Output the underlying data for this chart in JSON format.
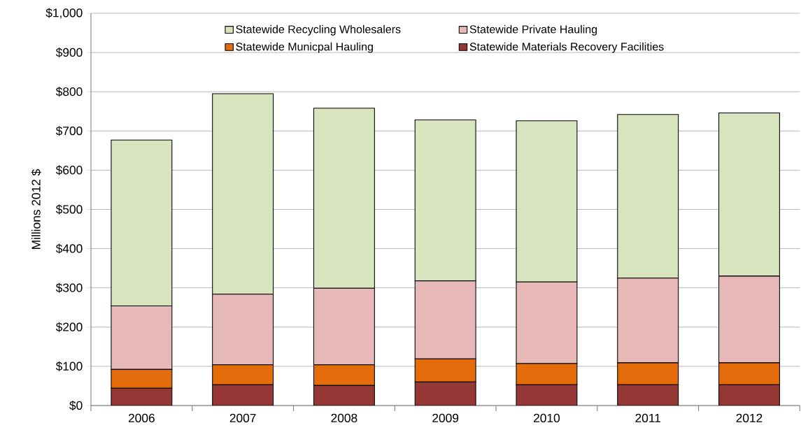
{
  "chart_data": {
    "type": "bar",
    "stacked": true,
    "ylabel": "Millions 2012 $",
    "categories": [
      "2006",
      "2007",
      "2008",
      "2009",
      "2010",
      "2011",
      "2012"
    ],
    "series": [
      {
        "name": "Statewide Materials Recovery Facilities",
        "color": "#953735",
        "values": [
          44,
          53,
          51,
          60,
          53,
          53,
          53
        ]
      },
      {
        "name": "Statewide Municpal Hauling",
        "color": "#e46c0a",
        "values": [
          48,
          51,
          53,
          59,
          54,
          56,
          56
        ]
      },
      {
        "name": "Statewide Private Hauling",
        "color": "#e6b9b8",
        "values": [
          162,
          180,
          195,
          199,
          208,
          216,
          221
        ]
      },
      {
        "name": "Statewide Recycling Wholesalers",
        "color": "#d7e4bd",
        "values": [
          423,
          511,
          459,
          410,
          411,
          417,
          416
        ]
      }
    ],
    "ylim": [
      0,
      1000
    ],
    "yticks": [
      {
        "value": 0,
        "label": "$0"
      },
      {
        "value": 100,
        "label": "$100"
      },
      {
        "value": 200,
        "label": "$200"
      },
      {
        "value": 300,
        "label": "$300"
      },
      {
        "value": 400,
        "label": "$400"
      },
      {
        "value": 500,
        "label": "$500"
      },
      {
        "value": 600,
        "label": "$600"
      },
      {
        "value": 700,
        "label": "$700"
      },
      {
        "value": 800,
        "label": "$800"
      },
      {
        "value": 900,
        "label": "$900"
      },
      {
        "value": 1000,
        "label": "$1,000"
      }
    ],
    "grid": "y",
    "legend": "top"
  }
}
